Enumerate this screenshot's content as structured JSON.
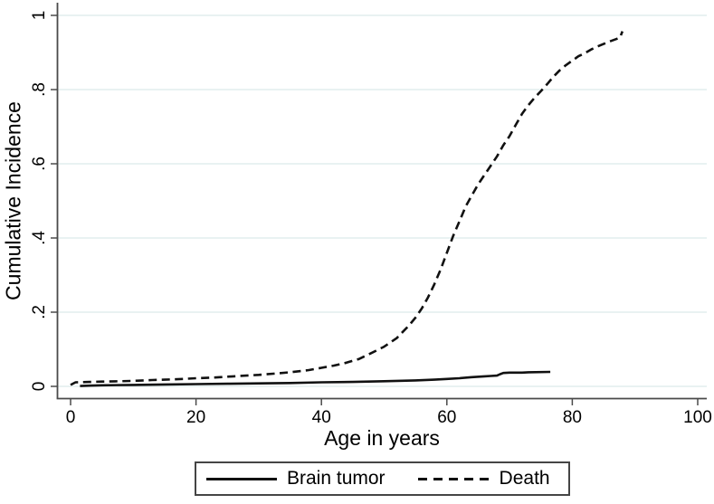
{
  "figure": {
    "background": "#ffffff",
    "axis_color": "#4a4a4a",
    "grid_color": "#e2eeee",
    "line_color": "#111111",
    "text_color": "#000000"
  },
  "chart_data": {
    "type": "line",
    "title": "",
    "xlabel": "Age in years",
    "ylabel": "Cumulative Incidence",
    "xlim": [
      0,
      100
    ],
    "ylim": [
      0,
      1
    ],
    "grid": "horizontal gridlines only",
    "legend_position": "bottom center, boxed",
    "x_ticks": [
      0,
      20,
      40,
      60,
      80,
      100
    ],
    "x_tick_labels": [
      "0",
      "20",
      "40",
      "60",
      "80",
      "100"
    ],
    "y_ticks": [
      0,
      0.2,
      0.4,
      0.6,
      0.8,
      1
    ],
    "y_tick_labels": [
      "0",
      ".2",
      ".4",
      ".6",
      ".8",
      "1"
    ],
    "series": [
      {
        "name": "Brain tumor",
        "style": "solid",
        "points": [
          [
            1.5,
            0.001
          ],
          [
            3,
            0.002
          ],
          [
            5,
            0.003
          ],
          [
            10,
            0.004
          ],
          [
            15,
            0.005
          ],
          [
            20,
            0.006
          ],
          [
            25,
            0.007
          ],
          [
            30,
            0.008
          ],
          [
            35,
            0.009
          ],
          [
            40,
            0.011
          ],
          [
            45,
            0.012
          ],
          [
            50,
            0.014
          ],
          [
            55,
            0.016
          ],
          [
            58,
            0.018
          ],
          [
            60,
            0.02
          ],
          [
            62,
            0.022
          ],
          [
            64,
            0.025
          ],
          [
            66,
            0.027
          ],
          [
            67,
            0.028
          ],
          [
            68,
            0.029
          ],
          [
            68.5,
            0.033
          ],
          [
            69,
            0.036
          ],
          [
            70,
            0.037
          ],
          [
            72,
            0.037
          ],
          [
            73,
            0.038
          ],
          [
            76.5,
            0.039
          ]
        ]
      },
      {
        "name": "Death",
        "style": "dashed",
        "points": [
          [
            0,
            0.004
          ],
          [
            0.8,
            0.011
          ],
          [
            3,
            0.012
          ],
          [
            5,
            0.013
          ],
          [
            8,
            0.014
          ],
          [
            10,
            0.015
          ],
          [
            13,
            0.017
          ],
          [
            15,
            0.018
          ],
          [
            18,
            0.02
          ],
          [
            20,
            0.022
          ],
          [
            23,
            0.024
          ],
          [
            25,
            0.026
          ],
          [
            28,
            0.029
          ],
          [
            30,
            0.031
          ],
          [
            33,
            0.035
          ],
          [
            35,
            0.038
          ],
          [
            38,
            0.044
          ],
          [
            40,
            0.05
          ],
          [
            42,
            0.056
          ],
          [
            44,
            0.064
          ],
          [
            46,
            0.074
          ],
          [
            48,
            0.09
          ],
          [
            50,
            0.107
          ],
          [
            52,
            0.13
          ],
          [
            54,
            0.165
          ],
          [
            55,
            0.185
          ],
          [
            56,
            0.21
          ],
          [
            57,
            0.24
          ],
          [
            58,
            0.275
          ],
          [
            59,
            0.315
          ],
          [
            60,
            0.36
          ],
          [
            61,
            0.405
          ],
          [
            62,
            0.445
          ],
          [
            63,
            0.485
          ],
          [
            64,
            0.515
          ],
          [
            65,
            0.545
          ],
          [
            66,
            0.57
          ],
          [
            67,
            0.595
          ],
          [
            68,
            0.62
          ],
          [
            69,
            0.65
          ],
          [
            70,
            0.675
          ],
          [
            71,
            0.705
          ],
          [
            72,
            0.735
          ],
          [
            73,
            0.758
          ],
          [
            74,
            0.778
          ],
          [
            75,
            0.796
          ],
          [
            76,
            0.815
          ],
          [
            77,
            0.835
          ],
          [
            78,
            0.852
          ],
          [
            79,
            0.866
          ],
          [
            80,
            0.878
          ],
          [
            81,
            0.89
          ],
          [
            82,
            0.898
          ],
          [
            83,
            0.908
          ],
          [
            84,
            0.916
          ],
          [
            85,
            0.923
          ],
          [
            86,
            0.93
          ],
          [
            87,
            0.936
          ],
          [
            87.6,
            0.94
          ],
          [
            88,
            0.957
          ]
        ]
      }
    ]
  }
}
